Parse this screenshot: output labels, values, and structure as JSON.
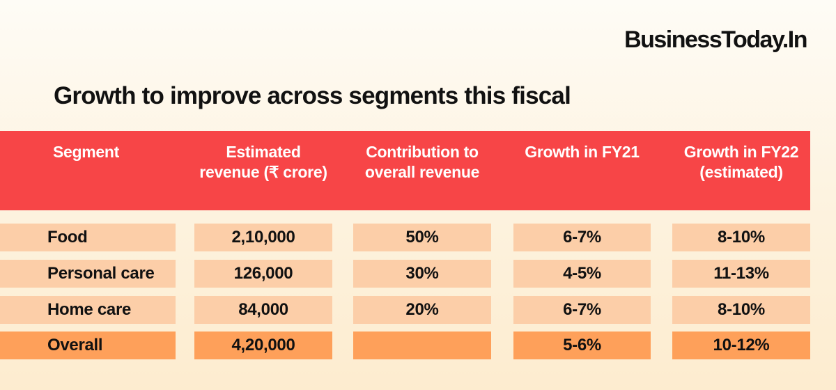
{
  "logo": "BusinessToday.In",
  "title": "Growth to improve across segments this fiscal",
  "colors": {
    "header": "#f74547",
    "row": "#fccea8",
    "total_row": "#fea05a",
    "background": "#fdf3e0"
  },
  "chart_data": {
    "type": "table",
    "title": "Growth to improve across segments this fiscal",
    "columns": [
      "Segment",
      "Estimated revenue (₹ crore)",
      "Contribution to overall revenue",
      "Growth in FY21",
      "Growth in FY22 (estimated)"
    ],
    "rows": [
      [
        "Food",
        "2,10,000",
        "50%",
        "6-7%",
        "8-10%"
      ],
      [
        "Personal care",
        "126,000",
        "30%",
        "4-5%",
        "11-13%"
      ],
      [
        "Home care",
        "84,000",
        "20%",
        "6-7%",
        "8-10%"
      ],
      [
        "Overall",
        "4,20,000",
        "",
        "5-6%",
        "10-12%"
      ]
    ]
  }
}
